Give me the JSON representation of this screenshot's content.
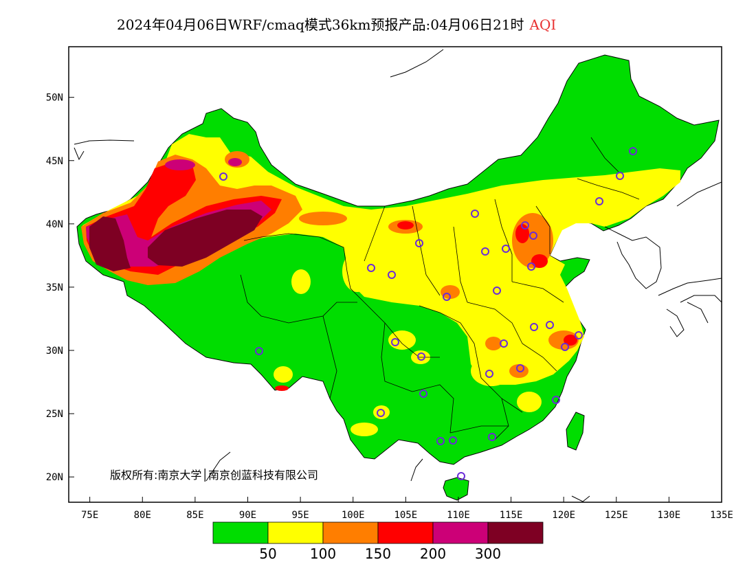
{
  "title": {
    "text": "2024年04月06日WRF/cmaq模式36km预报产品:04月06日21时",
    "variable": "AQI",
    "variable_color": "#e83030"
  },
  "map": {
    "lon_range": [
      73,
      135
    ],
    "lat_range": [
      18,
      54
    ],
    "x_ticks": [
      "75E",
      "80E",
      "85E",
      "90E",
      "95E",
      "100E",
      "105E",
      "110E",
      "115E",
      "120E",
      "125E",
      "130E",
      "135E"
    ],
    "y_ticks": [
      "50N",
      "45N",
      "40N",
      "35N",
      "30N",
      "25N",
      "20N"
    ],
    "copyright": "版权所有:南京大学│南京创蓝科技有限公司",
    "aqi_levels": [
      {
        "label": "0-50",
        "color": "#00dd00"
      },
      {
        "label": "50-100",
        "color": "#ffff00"
      },
      {
        "label": "100-150",
        "color": "#ff7e00"
      },
      {
        "label": "150-200",
        "color": "#ff0000"
      },
      {
        "label": "200-300",
        "color": "#cc0077"
      },
      {
        "label": ">300",
        "color": "#7e0023"
      }
    ],
    "legend_labels": [
      "50",
      "100",
      "150",
      "200",
      "300"
    ],
    "station_marker_color": "#6b2bd8"
  }
}
